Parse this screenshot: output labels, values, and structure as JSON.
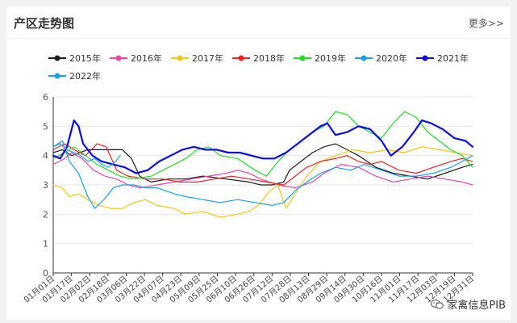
{
  "header": {
    "title": "产区走势图",
    "more_label": "更多>>"
  },
  "watermark": {
    "text": "家禽信息PIB"
  },
  "chart_data": {
    "type": "line",
    "ylim": [
      0,
      6
    ],
    "yticks": [
      0,
      1,
      2,
      3,
      4,
      5,
      6
    ],
    "x_tick_labels": [
      "01月01日",
      "01月17日",
      "02月02日",
      "02月18日",
      "03月06日",
      "03月22日",
      "04月07日",
      "04月23日",
      "05月09日",
      "05月25日",
      "06月10日",
      "06月26日",
      "07月12日",
      "07月28日",
      "08月13日",
      "08月29日",
      "09月14日",
      "09月30日",
      "10月16日",
      "11月01日",
      "11月17日",
      "12月03日",
      "12月19日",
      "12月31日"
    ],
    "grid": true,
    "legend": "top-left",
    "series": [
      {
        "name": "2015年",
        "color": "#1a1a1a",
        "width": 1.2,
        "points": [
          [
            0,
            4.1
          ],
          [
            8,
            4.2
          ],
          [
            16,
            4.0
          ],
          [
            30,
            4.2
          ],
          [
            45,
            4.2
          ],
          [
            60,
            4.2
          ],
          [
            68,
            3.9
          ],
          [
            75,
            3.3
          ],
          [
            85,
            3.1
          ],
          [
            100,
            3.2
          ],
          [
            115,
            3.2
          ],
          [
            130,
            3.3
          ],
          [
            150,
            3.2
          ],
          [
            170,
            3.1
          ],
          [
            180,
            3.0
          ],
          [
            190,
            3.0
          ],
          [
            200,
            3.1
          ],
          [
            205,
            3.5
          ],
          [
            215,
            3.8
          ],
          [
            225,
            4.1
          ],
          [
            235,
            4.3
          ],
          [
            245,
            4.4
          ],
          [
            255,
            4.2
          ],
          [
            265,
            4.0
          ],
          [
            280,
            3.6
          ],
          [
            295,
            3.4
          ],
          [
            310,
            3.3
          ],
          [
            325,
            3.2
          ],
          [
            340,
            3.4
          ],
          [
            355,
            3.6
          ],
          [
            364,
            3.7
          ]
        ]
      },
      {
        "name": "2016年",
        "color": "#ee44aa",
        "width": 1.2,
        "points": [
          [
            0,
            3.7
          ],
          [
            10,
            3.9
          ],
          [
            16,
            4.1
          ],
          [
            25,
            3.9
          ],
          [
            35,
            3.5
          ],
          [
            45,
            3.3
          ],
          [
            55,
            3.2
          ],
          [
            65,
            3.0
          ],
          [
            75,
            2.9
          ],
          [
            90,
            3.0
          ],
          [
            105,
            3.1
          ],
          [
            120,
            3.2
          ],
          [
            135,
            3.3
          ],
          [
            150,
            3.4
          ],
          [
            160,
            3.5
          ],
          [
            170,
            3.4
          ],
          [
            180,
            3.2
          ],
          [
            195,
            3.0
          ],
          [
            210,
            2.9
          ],
          [
            225,
            3.1
          ],
          [
            235,
            3.4
          ],
          [
            250,
            3.7
          ],
          [
            265,
            3.6
          ],
          [
            280,
            3.3
          ],
          [
            295,
            3.1
          ],
          [
            310,
            3.2
          ],
          [
            325,
            3.3
          ],
          [
            340,
            3.2
          ],
          [
            355,
            3.1
          ],
          [
            364,
            3.0
          ]
        ]
      },
      {
        "name": "2017年",
        "color": "#f5c518",
        "width": 1.2,
        "points": [
          [
            0,
            3.0
          ],
          [
            8,
            2.9
          ],
          [
            14,
            2.6
          ],
          [
            22,
            2.7
          ],
          [
            30,
            2.5
          ],
          [
            40,
            2.3
          ],
          [
            50,
            2.2
          ],
          [
            60,
            2.2
          ],
          [
            70,
            2.4
          ],
          [
            80,
            2.5
          ],
          [
            90,
            2.3
          ],
          [
            105,
            2.2
          ],
          [
            115,
            2.0
          ],
          [
            130,
            2.1
          ],
          [
            145,
            1.9
          ],
          [
            160,
            2.0
          ],
          [
            170,
            2.1
          ],
          [
            178,
            2.3
          ],
          [
            188,
            2.8
          ],
          [
            195,
            3.0
          ],
          [
            202,
            2.2
          ],
          [
            210,
            2.7
          ],
          [
            220,
            3.3
          ],
          [
            232,
            3.8
          ],
          [
            245,
            4.0
          ],
          [
            260,
            4.2
          ],
          [
            275,
            4.1
          ],
          [
            290,
            4.2
          ],
          [
            305,
            4.1
          ],
          [
            320,
            4.3
          ],
          [
            335,
            4.2
          ],
          [
            350,
            4.1
          ],
          [
            364,
            4.0
          ]
        ]
      },
      {
        "name": "2018年",
        "color": "#ee2222",
        "width": 1.2,
        "points": [
          [
            0,
            4.2
          ],
          [
            10,
            4.4
          ],
          [
            18,
            4.2
          ],
          [
            28,
            4.0
          ],
          [
            38,
            4.4
          ],
          [
            46,
            4.3
          ],
          [
            55,
            3.5
          ],
          [
            65,
            3.3
          ],
          [
            80,
            3.2
          ],
          [
            95,
            3.2
          ],
          [
            110,
            3.1
          ],
          [
            125,
            3.1
          ],
          [
            140,
            3.2
          ],
          [
            155,
            3.3
          ],
          [
            170,
            3.2
          ],
          [
            185,
            3.1
          ],
          [
            200,
            3.0
          ],
          [
            210,
            3.3
          ],
          [
            220,
            3.6
          ],
          [
            232,
            3.8
          ],
          [
            245,
            3.9
          ],
          [
            255,
            4.0
          ],
          [
            265,
            3.8
          ],
          [
            275,
            3.7
          ],
          [
            285,
            3.8
          ],
          [
            300,
            3.5
          ],
          [
            315,
            3.4
          ],
          [
            330,
            3.6
          ],
          [
            345,
            3.8
          ],
          [
            355,
            3.9
          ],
          [
            364,
            3.8
          ]
        ]
      },
      {
        "name": "2019年",
        "color": "#22dd22",
        "width": 1.2,
        "points": [
          [
            0,
            3.9
          ],
          [
            10,
            4.1
          ],
          [
            18,
            4.3
          ],
          [
            28,
            4.0
          ],
          [
            38,
            3.7
          ],
          [
            48,
            3.5
          ],
          [
            58,
            3.3
          ],
          [
            70,
            3.2
          ],
          [
            85,
            3.3
          ],
          [
            100,
            3.6
          ],
          [
            115,
            3.9
          ],
          [
            125,
            4.2
          ],
          [
            135,
            4.3
          ],
          [
            145,
            4.0
          ],
          [
            160,
            3.9
          ],
          [
            175,
            3.5
          ],
          [
            185,
            3.3
          ],
          [
            195,
            3.8
          ],
          [
            205,
            4.2
          ],
          [
            215,
            4.5
          ],
          [
            225,
            4.8
          ],
          [
            235,
            5.0
          ],
          [
            245,
            5.5
          ],
          [
            255,
            5.4
          ],
          [
            265,
            5.0
          ],
          [
            275,
            4.8
          ],
          [
            285,
            4.6
          ],
          [
            295,
            5.1
          ],
          [
            305,
            5.5
          ],
          [
            315,
            5.3
          ],
          [
            325,
            4.8
          ],
          [
            335,
            4.5
          ],
          [
            345,
            4.2
          ],
          [
            355,
            4.0
          ],
          [
            364,
            3.6
          ]
        ]
      },
      {
        "name": "2020年",
        "color": "#1a9fee",
        "width": 1.2,
        "points": [
          [
            0,
            4.3
          ],
          [
            8,
            4.5
          ],
          [
            14,
            3.8
          ],
          [
            22,
            3.4
          ],
          [
            30,
            2.6
          ],
          [
            36,
            2.2
          ],
          [
            44,
            2.5
          ],
          [
            52,
            2.9
          ],
          [
            60,
            3.0
          ],
          [
            70,
            3.0
          ],
          [
            80,
            2.9
          ],
          [
            90,
            2.9
          ],
          [
            105,
            2.7
          ],
          [
            115,
            2.6
          ],
          [
            130,
            2.5
          ],
          [
            145,
            2.4
          ],
          [
            160,
            2.5
          ],
          [
            175,
            2.4
          ],
          [
            190,
            2.3
          ],
          [
            200,
            2.4
          ],
          [
            210,
            2.8
          ],
          [
            220,
            3.1
          ],
          [
            232,
            3.4
          ],
          [
            245,
            3.6
          ],
          [
            258,
            3.5
          ],
          [
            270,
            3.7
          ],
          [
            285,
            3.5
          ],
          [
            300,
            3.3
          ],
          [
            315,
            3.3
          ],
          [
            330,
            3.4
          ],
          [
            345,
            3.6
          ],
          [
            355,
            3.8
          ],
          [
            364,
            4.0
          ]
        ]
      },
      {
        "name": "2021年",
        "color": "#0d0ddd",
        "width": 2.2,
        "points": [
          [
            0,
            4.0
          ],
          [
            6,
            3.9
          ],
          [
            12,
            4.3
          ],
          [
            18,
            5.2
          ],
          [
            22,
            5.0
          ],
          [
            26,
            4.4
          ],
          [
            34,
            4.0
          ],
          [
            42,
            3.8
          ],
          [
            52,
            3.7
          ],
          [
            62,
            3.6
          ],
          [
            72,
            3.4
          ],
          [
            82,
            3.5
          ],
          [
            92,
            3.8
          ],
          [
            102,
            4.0
          ],
          [
            112,
            4.2
          ],
          [
            122,
            4.3
          ],
          [
            132,
            4.2
          ],
          [
            142,
            4.2
          ],
          [
            152,
            4.1
          ],
          [
            162,
            4.1
          ],
          [
            172,
            4.0
          ],
          [
            182,
            3.9
          ],
          [
            192,
            3.9
          ],
          [
            202,
            4.1
          ],
          [
            212,
            4.4
          ],
          [
            222,
            4.7
          ],
          [
            232,
            5.0
          ],
          [
            238,
            5.1
          ],
          [
            245,
            4.7
          ],
          [
            255,
            4.8
          ],
          [
            265,
            5.0
          ],
          [
            275,
            4.9
          ],
          [
            285,
            4.5
          ],
          [
            293,
            4.0
          ],
          [
            303,
            4.3
          ],
          [
            313,
            4.8
          ],
          [
            320,
            5.2
          ],
          [
            328,
            5.1
          ],
          [
            338,
            4.9
          ],
          [
            348,
            4.6
          ],
          [
            358,
            4.5
          ],
          [
            364,
            4.3
          ]
        ]
      },
      {
        "name": "2022年",
        "color": "#1a9fee",
        "width": 1.2,
        "points": [
          [
            0,
            4.3
          ],
          [
            6,
            4.4
          ],
          [
            12,
            4.2
          ],
          [
            18,
            4.1
          ],
          [
            24,
            4.0
          ],
          [
            30,
            3.8
          ],
          [
            36,
            3.9
          ],
          [
            42,
            3.7
          ],
          [
            48,
            3.6
          ],
          [
            54,
            3.8
          ],
          [
            58,
            4.0
          ]
        ]
      }
    ]
  }
}
